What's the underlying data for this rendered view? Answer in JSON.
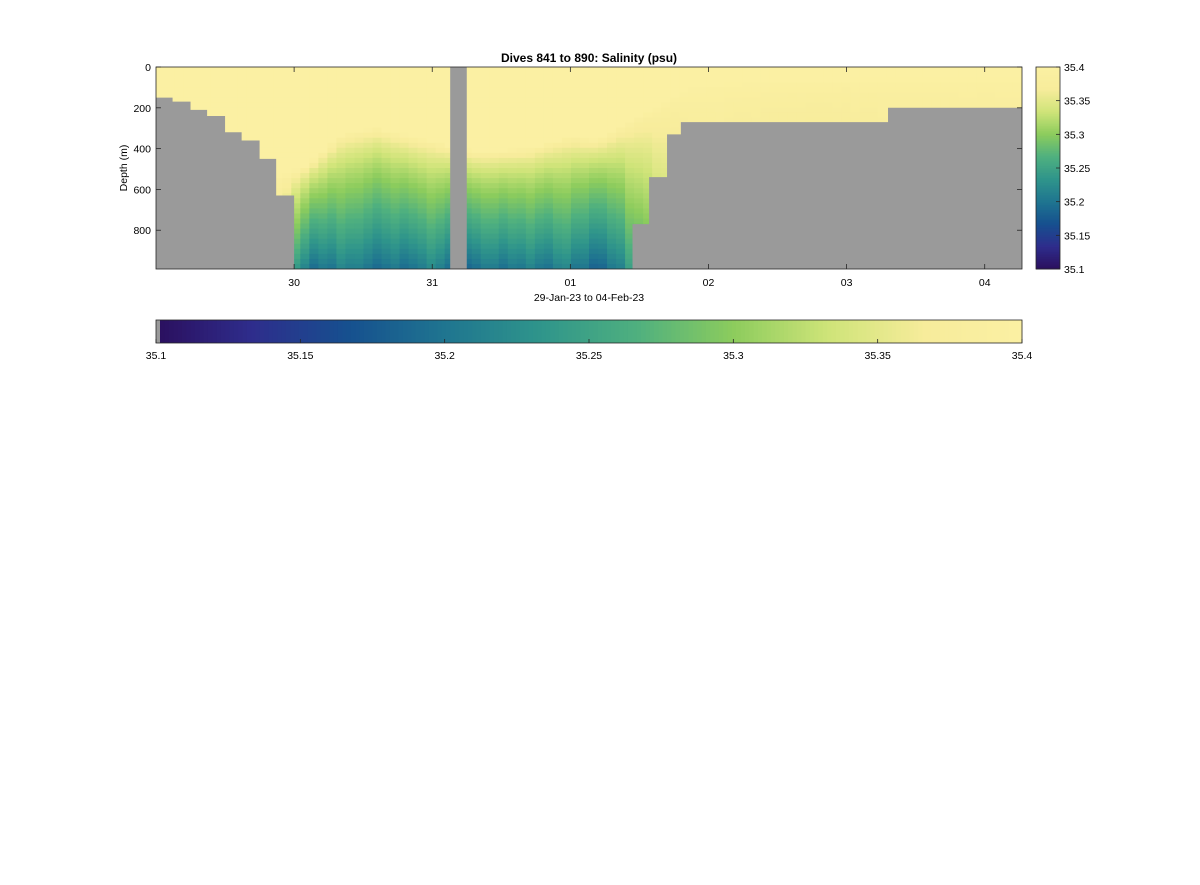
{
  "chart_data": [
    {
      "type": "heatmap",
      "title": "Dives 841 to 890: Salinity (psu)",
      "xlabel": "29-Jan-23 to 04-Feb-23",
      "ylabel": "Depth (m)",
      "x_ticks": [
        "30",
        "31",
        "01",
        "02",
        "03",
        "04"
      ],
      "y_ticks": [
        0,
        200,
        400,
        600,
        800
      ],
      "xlim_days": [
        29.0,
        35.27
      ],
      "ylim": [
        0,
        990
      ],
      "y_reversed": true,
      "color_range": [
        35.1,
        35.4
      ],
      "colormap": [
        "#2b0f5e",
        "#2e2d8c",
        "#16508f",
        "#1f7590",
        "#2f958b",
        "#4fb07f",
        "#8ccc5d",
        "#cfe479",
        "#f7ec9b",
        "#fbf0a3"
      ],
      "nodata_color": "#9a9a9a",
      "seafloor_profile": {
        "x_day": [
          29.0,
          29.12,
          29.25,
          29.37,
          29.5,
          29.62,
          29.75,
          29.87,
          30.0,
          31.13,
          32.32,
          32.45,
          32.57,
          32.7,
          32.8,
          34.3,
          35.27
        ],
        "depth": [
          150,
          170,
          210,
          240,
          320,
          360,
          450,
          630,
          990,
          990,
          990,
          770,
          540,
          330,
          270,
          200,
          200
        ]
      },
      "gap": {
        "from_day": 31.13,
        "to_day": 31.25
      },
      "columns": [
        {
          "day": 29.06,
          "deep_salinity": 35.39,
          "halocline_depth": 150
        },
        {
          "day": 29.48,
          "deep_salinity": 35.37,
          "halocline_depth": 300
        },
        {
          "day": 29.9,
          "deep_salinity": 35.33,
          "halocline_depth": 540
        },
        {
          "day": 30.1,
          "deep_salinity": 35.22,
          "halocline_depth": 480
        },
        {
          "day": 30.35,
          "deep_salinity": 35.24,
          "halocline_depth": 330
        },
        {
          "day": 30.6,
          "deep_salinity": 35.23,
          "halocline_depth": 300
        },
        {
          "day": 30.9,
          "deep_salinity": 35.24,
          "halocline_depth": 350
        },
        {
          "day": 31.35,
          "deep_salinity": 35.22,
          "halocline_depth": 420
        },
        {
          "day": 31.7,
          "deep_salinity": 35.23,
          "halocline_depth": 400
        },
        {
          "day": 32.0,
          "deep_salinity": 35.24,
          "halocline_depth": 340
        },
        {
          "day": 32.2,
          "deep_salinity": 35.22,
          "halocline_depth": 360
        },
        {
          "day": 32.9,
          "deep_salinity": 35.36,
          "halocline_depth": 90
        },
        {
          "day": 33.5,
          "deep_salinity": 35.34,
          "halocline_depth": 70
        },
        {
          "day": 34.0,
          "deep_salinity": 35.34,
          "halocline_depth": 60
        },
        {
          "day": 34.3,
          "deep_salinity": 35.35,
          "halocline_depth": 55
        }
      ],
      "colorbar_ticks": [
        35.1,
        35.15,
        35.2,
        35.25,
        35.3,
        35.35,
        35.4
      ],
      "colorbar_ticks_labels": [
        "35.1",
        "35.15",
        "35.2",
        "35.25",
        "35.3",
        "35.35",
        "35.4"
      ]
    }
  ]
}
